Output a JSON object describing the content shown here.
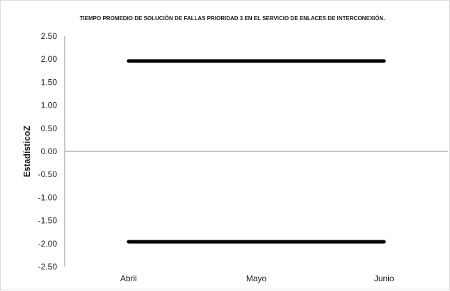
{
  "chart_data": {
    "type": "line",
    "title": "TIEMPO PROMEDIO DE SOLUCIÓN DE FALLAS PRIORIDAD 3 EN EL SERVICIO DE ENLACES DE INTERCONEXIÓN.",
    "xlabel": "",
    "ylabel": "EstadísticoZ",
    "categories": [
      "Abril",
      "Mayo",
      "Junio"
    ],
    "ylim": [
      -2.5,
      2.5
    ],
    "yticks": [
      "2.50",
      "2.00",
      "1.50",
      "1.00",
      "0.50",
      "0.00",
      "-0.50",
      "-1.00",
      "-1.50",
      "-2.00",
      "-2.50"
    ],
    "ytick_values": [
      2.5,
      2.0,
      1.5,
      1.0,
      0.5,
      0.0,
      -0.5,
      -1.0,
      -1.5,
      -2.0,
      -2.5
    ],
    "series": [
      {
        "values": [
          1.96,
          1.96,
          1.96
        ],
        "color": "#000000"
      },
      {
        "values": [
          -1.96,
          -1.96,
          -1.96
        ],
        "color": "#000000"
      }
    ],
    "grid": false,
    "legend": "none"
  }
}
